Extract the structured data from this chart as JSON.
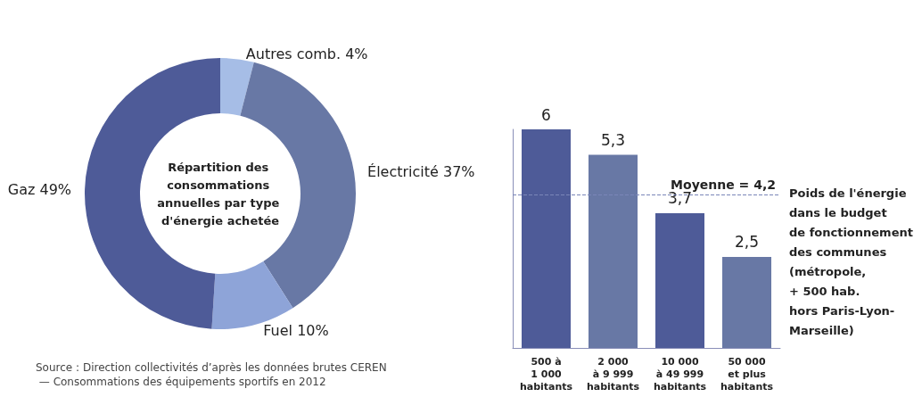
{
  "chart_data": [
    {
      "type": "donut",
      "title": "Répartition des consommations annuelles par type d'énergie achetée",
      "categories": [
        "Autres comb.",
        "Électricité",
        "Fuel",
        "Gaz"
      ],
      "values": [
        4,
        37,
        10,
        49
      ],
      "colors": [
        "#a6bde6",
        "#6878a5",
        "#8ea4d8",
        "#4e5b98"
      ],
      "value_labels": [
        "4%",
        "37%",
        "10%",
        "49%"
      ],
      "legend": false,
      "annotations": [
        "Source : Direction collectivités d’après les données brutes CEREN — Consommations des équipements sportifs en 2012"
      ]
    },
    {
      "type": "bar",
      "categories": [
        "500 à\n1 000\nhabitants",
        "2 000\nà 9 999\nhabitants",
        "10 000\nà 49 999\nhabitants",
        "50 000\net plus\nhabitants"
      ],
      "values": [
        6,
        5.3,
        3.7,
        2.5
      ],
      "value_labels": [
        "6",
        "5,3",
        "3,7",
        "2,5"
      ],
      "colors": [
        "#4e5b98",
        "#6878a5",
        "#4e5b98",
        "#6878a5"
      ],
      "ylim": [
        0,
        6
      ],
      "tick_labels": "x",
      "grid": false,
      "legend": false,
      "ylabel": "Poids de l'énergie\ndans le budget\nde fonctionnement\ndes communes\n(métropole,\n+ 500 hab.\nhors Paris-Lyon-\nMarseille)",
      "ref_lines": [
        {
          "axis": "y",
          "value": 4.2,
          "label": "Moyenne = 4,2",
          "color": "#7a86b8",
          "line_style": "dashed"
        }
      ]
    }
  ]
}
